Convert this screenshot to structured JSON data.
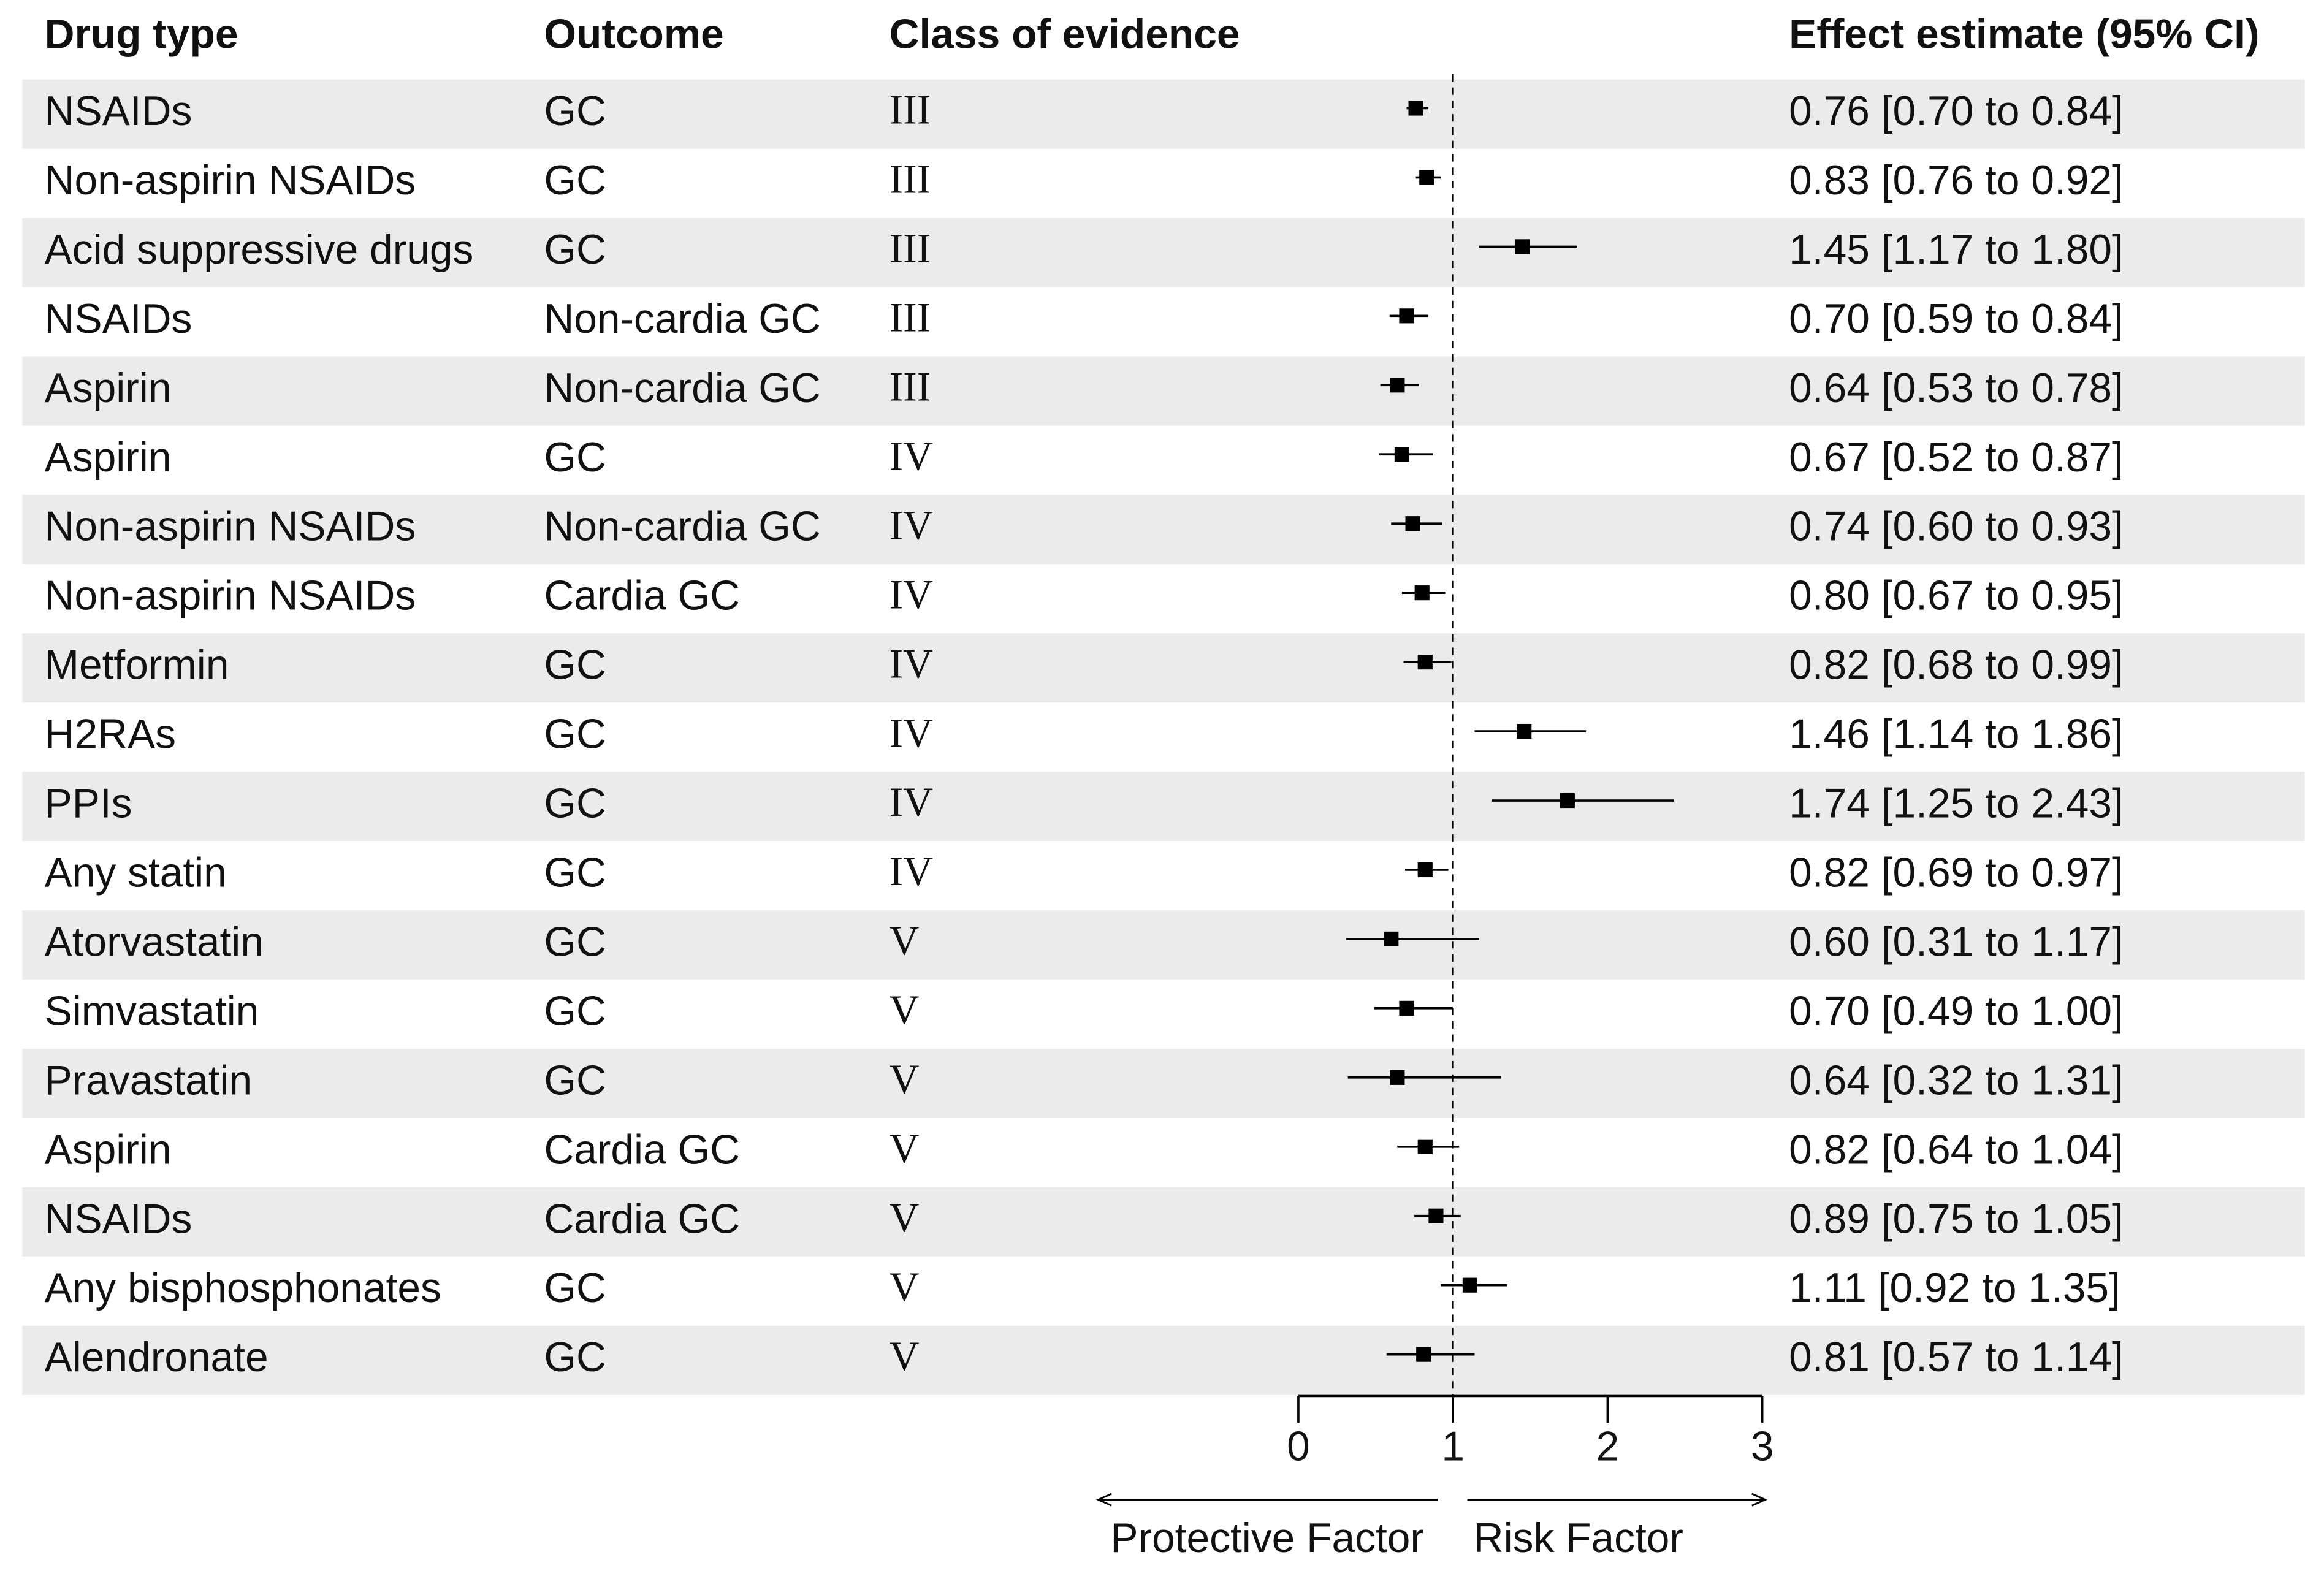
{
  "chart_data": {
    "type": "forest",
    "headers": [
      "Drug type",
      "Outcome",
      "Class of evidence",
      "Effect estimate (95% CI)"
    ],
    "drug_types": [
      "NSAIDs",
      "Non-aspirin NSAIDs",
      "Acid suppressive drugs",
      "NSAIDs",
      "Aspirin",
      "Aspirin",
      "Non-aspirin NSAIDs",
      "Non-aspirin NSAIDs",
      "Metformin",
      "H2RAs",
      "PPIs",
      "Any statin",
      "Atorvastatin",
      "Simvastatin",
      "Pravastatin",
      "Aspirin",
      "NSAIDs",
      "Any bisphosphonates",
      "Alendronate"
    ],
    "outcomes": [
      "GC",
      "GC",
      "GC",
      "Non-cardia GC",
      "Non-cardia GC",
      "GC",
      "Non-cardia GC",
      "Cardia GC",
      "GC",
      "GC",
      "GC",
      "GC",
      "GC",
      "GC",
      "GC",
      "Cardia GC",
      "Cardia GC",
      "GC",
      "GC"
    ],
    "evidence_classes": [
      "III",
      "III",
      "III",
      "III",
      "III",
      "IV",
      "IV",
      "IV",
      "IV",
      "IV",
      "IV",
      "IV",
      "V",
      "V",
      "V",
      "V",
      "V",
      "V",
      "V"
    ],
    "values": [
      0.76,
      0.83,
      1.45,
      0.7,
      0.64,
      0.67,
      0.74,
      0.8,
      0.82,
      1.46,
      1.74,
      0.82,
      0.6,
      0.7,
      0.64,
      0.82,
      0.89,
      1.11,
      0.81
    ],
    "lower": [
      0.7,
      0.76,
      1.17,
      0.59,
      0.53,
      0.52,
      0.6,
      0.67,
      0.68,
      1.14,
      1.25,
      0.69,
      0.31,
      0.49,
      0.32,
      0.64,
      0.75,
      0.92,
      0.57
    ],
    "upper": [
      0.84,
      0.92,
      1.8,
      0.84,
      0.78,
      0.87,
      0.93,
      0.95,
      0.99,
      1.86,
      2.43,
      0.97,
      1.17,
      1.0,
      1.31,
      1.04,
      1.05,
      1.35,
      1.14
    ],
    "value_labels": [
      "0.76 [0.70 to 0.84]",
      "0.83 [0.76 to 0.92]",
      "1.45 [1.17 to 1.80]",
      "0.70 [0.59 to 0.84]",
      "0.64 [0.53 to 0.78]",
      "0.67 [0.52 to 0.87]",
      "0.74 [0.60 to 0.93]",
      "0.80 [0.67 to 0.95]",
      "0.82 [0.68 to 0.99]",
      "1.46 [1.14 to 1.86]",
      "1.74 [1.25 to 2.43]",
      "0.82 [0.69 to 0.97]",
      "0.60 [0.31 to 1.17]",
      "0.70 [0.49 to 1.00]",
      "0.64 [0.32 to 1.31]",
      "0.82 [0.64 to 1.04]",
      "0.89 [0.75 to 1.05]",
      "1.11 [0.92 to 1.35]",
      "0.81 [0.57 to 1.14]"
    ],
    "xlim": [
      0,
      3
    ],
    "xticks": [
      0,
      1,
      2,
      3
    ],
    "reference_line": 1,
    "color": "#000000",
    "band_color": "#ebebeb",
    "annotations": [
      "Protective Factor",
      "Risk Factor"
    ]
  }
}
